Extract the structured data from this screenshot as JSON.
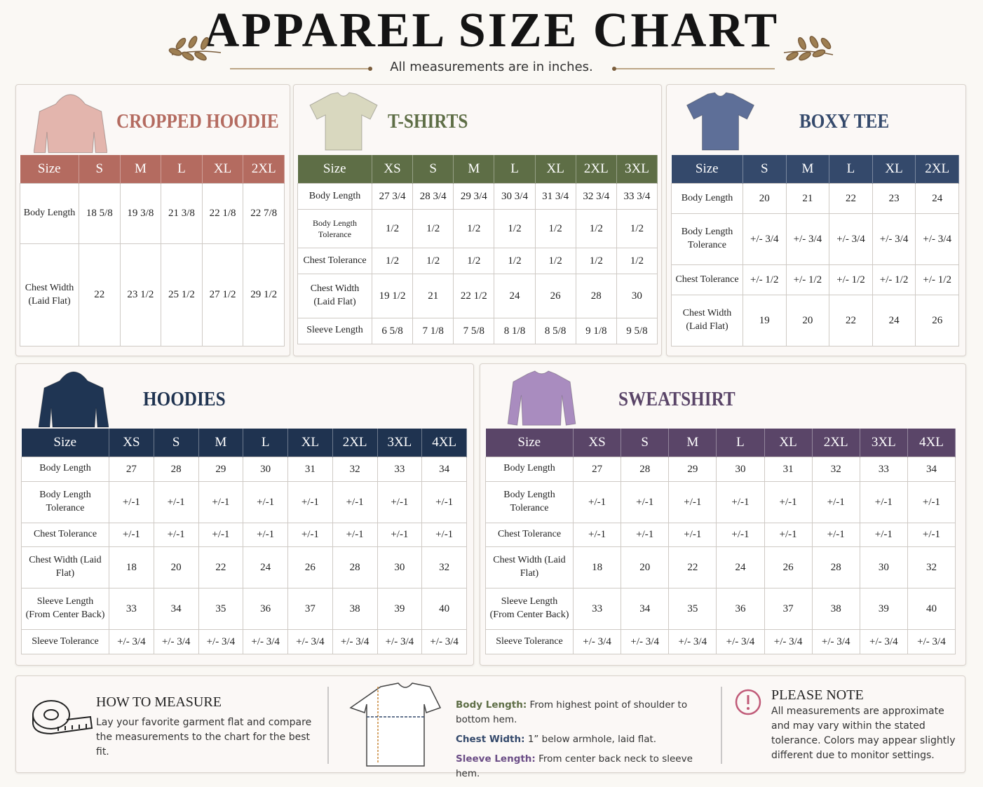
{
  "header": {
    "title": "APPAREL SIZE CHART",
    "subtitle": "All measurements are in inches."
  },
  "sections": [
    {
      "title": "CROPPED HOODIE",
      "color": "#b46b60",
      "header": [
        "Size",
        "S",
        "M",
        "L",
        "XL",
        "2XL"
      ],
      "rows": [
        [
          "Body Length",
          "18 5/8",
          "19 3/8",
          "21 3/8",
          "22 1/8",
          "22 7/8"
        ],
        [
          "Chest Width (Laid Flat)",
          "22",
          "23 1/2",
          "25 1/2",
          "27 1/2",
          "29 1/2"
        ]
      ]
    },
    {
      "title": "T-SHIRTS",
      "color": "#5e6e46",
      "header": [
        "Size",
        "XS",
        "S",
        "M",
        "L",
        "XL",
        "2XL",
        "3XL"
      ],
      "rows": [
        [
          "Body Length",
          "27 3/4",
          "28 3/4",
          "29 3/4",
          "30 3/4",
          "31 3/4",
          "32 3/4",
          "33 3/4"
        ],
        [
          "Body Length Tolerance",
          "1/2",
          "1/2",
          "1/2",
          "1/2",
          "1/2",
          "1/2",
          "1/2"
        ],
        [
          "Chest Tolerance",
          "1/2",
          "1/2",
          "1/2",
          "1/2",
          "1/2",
          "1/2",
          "1/2"
        ],
        [
          "Chest Width (Laid Flat)",
          "19 1/2",
          "21",
          "22 1/2",
          "24",
          "26",
          "28",
          "30"
        ],
        [
          "Sleeve Length",
          "6 5/8",
          "7 1/8",
          "7 5/8",
          "8 1/8",
          "8 5/8",
          "9 1/8",
          "9 5/8"
        ]
      ]
    },
    {
      "title": "BOXY TEE",
      "color": "#34496b",
      "header": [
        "Size",
        "S",
        "M",
        "L",
        "XL",
        "2XL"
      ],
      "rows": [
        [
          "Body Length",
          "20",
          "21",
          "22",
          "23",
          "24"
        ],
        [
          "Body Length Tolerance",
          "+/- 3/4",
          "+/- 3/4",
          "+/- 3/4",
          "+/- 3/4",
          "+/- 3/4"
        ],
        [
          "Chest Tolerance",
          "+/- 1/2",
          "+/- 1/2",
          "+/- 1/2",
          "+/- 1/2",
          "+/- 1/2"
        ],
        [
          "Chest Width (Laid Flat)",
          "19",
          "20",
          "22",
          "24",
          "26"
        ]
      ]
    },
    {
      "title": "HOODIES",
      "color": "#1f3350",
      "header": [
        "Size",
        "XS",
        "S",
        "M",
        "L",
        "XL",
        "2XL",
        "3XL",
        "4XL"
      ],
      "rows": [
        [
          "Body Length",
          "27",
          "28",
          "29",
          "30",
          "31",
          "32",
          "33",
          "34"
        ],
        [
          "Body Length Tolerance",
          "+/-1",
          "+/-1",
          "+/-1",
          "+/-1",
          "+/-1",
          "+/-1",
          "+/-1",
          "+/-1"
        ],
        [
          "Chest Tolerance",
          "+/-1",
          "+/-1",
          "+/-1",
          "+/-1",
          "+/-1",
          "+/-1",
          "+/-1",
          "+/-1"
        ],
        [
          "Chest Width (Laid Flat)",
          "18",
          "20",
          "22",
          "24",
          "26",
          "28",
          "30",
          "32"
        ],
        [
          "Sleeve Length (From Center Back)",
          "33",
          "34",
          "35",
          "36",
          "37",
          "38",
          "39",
          "40"
        ],
        [
          "Sleeve Tolerance",
          "+/- 3/4",
          "+/- 3/4",
          "+/- 3/4",
          "+/- 3/4",
          "+/- 3/4",
          "+/- 3/4",
          "+/- 3/4",
          "+/- 3/4"
        ]
      ]
    },
    {
      "title": "SWEATSHIRT",
      "color": "#5a4568",
      "header": [
        "Size",
        "XS",
        "S",
        "M",
        "L",
        "XL",
        "2XL",
        "3XL",
        "4XL"
      ],
      "rows": [
        [
          "Body Length",
          "27",
          "28",
          "29",
          "30",
          "31",
          "32",
          "33",
          "34"
        ],
        [
          "Body Length Tolerance",
          "+/-1",
          "+/-1",
          "+/-1",
          "+/-1",
          "+/-1",
          "+/-1",
          "+/-1",
          "+/-1"
        ],
        [
          "Chest Tolerance",
          "+/-1",
          "+/-1",
          "+/-1",
          "+/-1",
          "+/-1",
          "+/-1",
          "+/-1",
          "+/-1"
        ],
        [
          "Chest Width (Laid Flat)",
          "18",
          "20",
          "22",
          "24",
          "26",
          "28",
          "30",
          "32"
        ],
        [
          "Sleeve Length (From Center Back)",
          "33",
          "34",
          "35",
          "36",
          "37",
          "38",
          "39",
          "40"
        ],
        [
          "Sleeve Tolerance",
          "+/- 3/4",
          "+/- 3/4",
          "+/- 3/4",
          "+/- 3/4",
          "+/- 3/4",
          "+/- 3/4",
          "+/- 3/4",
          "+/- 3/4"
        ]
      ]
    }
  ],
  "footer": {
    "how_to": {
      "title": "HOW TO MEASURE",
      "text": "Lay your favorite garment flat and compare the measurements to the chart for the best fit."
    },
    "guide": [
      {
        "label": "Body Length:",
        "text": "From highest point of shoulder to bottom hem."
      },
      {
        "label": "Chest Width:",
        "text": "1” below armhole, laid flat."
      },
      {
        "label": "Sleeve Length:",
        "text": "From center back neck to sleeve hem."
      }
    ],
    "note": {
      "title": "PLEASE NOTE",
      "text": "All measurements are approximate and may vary within the stated tolerance. Colors may appear slightly different due to monitor settings."
    }
  }
}
